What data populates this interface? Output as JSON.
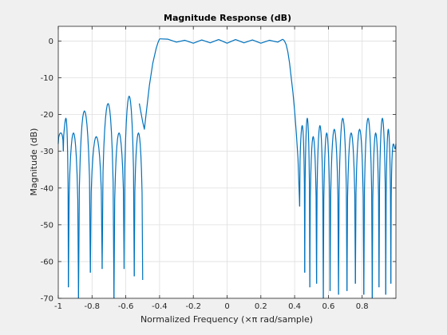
{
  "chart_data": {
    "type": "line",
    "title": "Magnitude Response (dB)",
    "xlabel": "Normalized Frequency (×π rad/sample)",
    "ylabel": "Magnitude (dB)",
    "xlim": [
      -1,
      1
    ],
    "ylim": [
      -70,
      4
    ],
    "grid": true,
    "line_color": "#0072bd",
    "xticks": [
      -1,
      -0.8,
      -0.6,
      -0.4,
      -0.2,
      0,
      0.2,
      0.4,
      0.6,
      0.8
    ],
    "xtick_labels": [
      "-1",
      "-0.8",
      "-0.6",
      "-0.4",
      "-0.2",
      "0",
      "0.2",
      "0.4",
      "0.6",
      "0.8"
    ],
    "yticks": [
      0,
      -10,
      -20,
      -30,
      -40,
      -50,
      -60,
      -70
    ],
    "ytick_labels": [
      "0",
      "-10",
      "-20",
      "-30",
      "-40",
      "-50",
      "-60",
      "-70"
    ],
    "passband": {
      "x": [
        -0.4,
        -0.35,
        -0.3,
        -0.25,
        -0.2,
        -0.15,
        -0.1,
        -0.05,
        0.0,
        0.05,
        0.1,
        0.15,
        0.2,
        0.25,
        0.3,
        0.33
      ],
      "y": [
        0.6,
        0.5,
        -0.3,
        0.2,
        -0.6,
        0.3,
        -0.5,
        0.4,
        -0.6,
        0.4,
        -0.5,
        0.3,
        -0.6,
        0.2,
        -0.3,
        0.5
      ]
    },
    "transition_edges": [
      {
        "x": [
          -0.52,
          -0.5,
          -0.49,
          -0.48,
          -0.47,
          -0.46,
          -0.45,
          -0.44,
          -0.43,
          -0.42,
          -0.41,
          -0.4
        ],
        "y": [
          -17,
          -22,
          -24,
          -20,
          -16,
          -12,
          -9,
          -6,
          -4,
          -2,
          -0.5,
          0.6
        ]
      },
      {
        "x": [
          0.33,
          0.34,
          0.35,
          0.36,
          0.37,
          0.38,
          0.39,
          0.4,
          0.41,
          0.42,
          0.43
        ],
        "y": [
          0.5,
          0,
          -1,
          -3,
          -6,
          -10,
          -14,
          -19,
          -25,
          -32,
          -45
        ]
      }
    ],
    "sidelobes": {
      "nulls": [
        -0.97,
        -0.94,
        -0.88,
        -0.81,
        -0.74,
        -0.67,
        -0.61,
        -0.55,
        -0.5,
        0.43,
        0.46,
        0.49,
        0.53,
        0.57,
        0.61,
        0.66,
        0.71,
        0.76,
        0.81,
        0.86,
        0.9,
        0.94,
        0.97
      ],
      "null_depths": [
        -30,
        -67,
        -70,
        -63,
        -62,
        -70,
        -62,
        -64,
        -65,
        -68,
        -63,
        -67,
        -66,
        -70,
        -68,
        -69,
        -68,
        -66,
        -69,
        -70,
        -67,
        -69,
        -66
      ],
      "peak_levels": [
        -25,
        -21,
        -25,
        -19,
        -26,
        -17,
        -25,
        -15,
        -25,
        -23,
        -21,
        -26,
        -23,
        -25,
        -24,
        -21,
        -25,
        -24,
        -21,
        -25,
        -21,
        -24,
        -28
      ]
    }
  }
}
